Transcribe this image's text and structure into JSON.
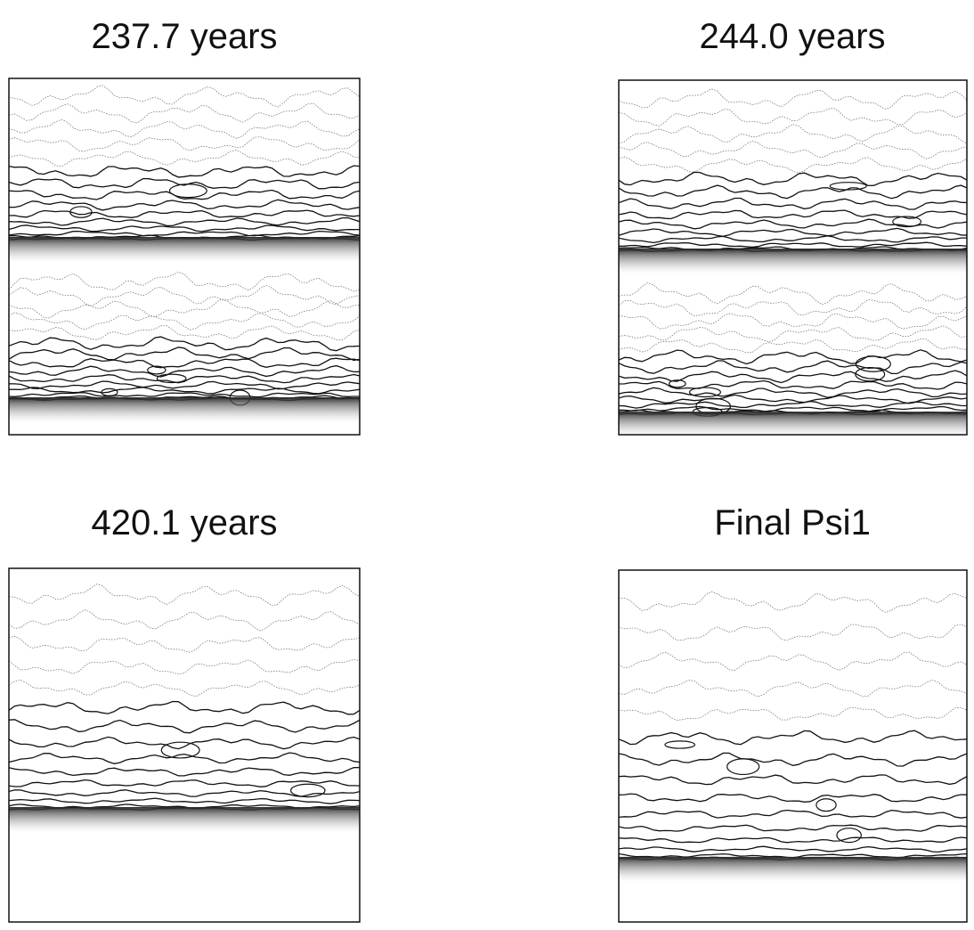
{
  "panels": [
    {
      "title": "237.7 years"
    },
    {
      "title": "244.0 years"
    },
    {
      "title": "420.1 years"
    },
    {
      "title": "Final Psi1"
    }
  ]
}
